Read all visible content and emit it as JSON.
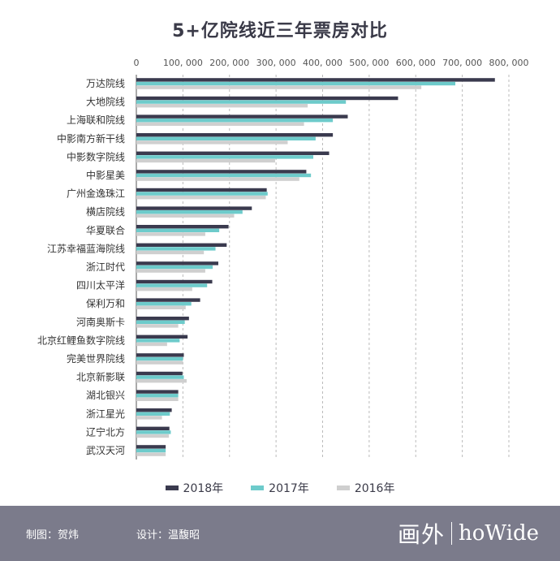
{
  "title": "5+亿院线近三年票房对比",
  "legend": [
    {
      "label": "2018年",
      "color": "#3a3a4e"
    },
    {
      "label": "2017年",
      "color": "#6dcbcb"
    },
    {
      "label": "2016年",
      "color": "#cfcfcf"
    }
  ],
  "footer": {
    "maker": "制图：贺炜",
    "designer": "设计：温馥昭",
    "logo_cn": "画外",
    "logo_en": "hoWide"
  },
  "chart_data": {
    "type": "bar",
    "orientation": "horizontal",
    "title": "5+亿院线近三年票房对比",
    "xlim": [
      0,
      800000
    ],
    "xticks": [
      0,
      100000,
      200000,
      300000,
      400000,
      500000,
      600000,
      700000,
      800000
    ],
    "xtick_labels": [
      "0",
      "100, 000",
      "200, 000",
      "300, 000",
      "400, 000",
      "500, 000",
      "600, 000",
      "700, 000",
      "800, 000"
    ],
    "categories": [
      "万达院线",
      "大地院线",
      "上海联和院线",
      "中影南方新干线",
      "中影数字院线",
      "中影星美",
      "广州金逸珠江",
      "横店院线",
      "华夏联合",
      "江苏幸福蓝海院线",
      "浙江时代",
      "四川太平洋",
      "保利万和",
      "河南奥斯卡",
      "北京红鲤鱼数字院线",
      "完美世界院线",
      "北京新影联",
      "湖北银兴",
      "浙江星光",
      "辽宁北方",
      "武汉天河"
    ],
    "series": [
      {
        "name": "2018年",
        "color": "#3a3a4e",
        "values": [
          770000,
          562000,
          454000,
          422000,
          414000,
          365000,
          280000,
          248000,
          198000,
          194000,
          176000,
          163000,
          137000,
          113000,
          110000,
          102000,
          99000,
          90000,
          76000,
          71000,
          63000
        ]
      },
      {
        "name": "2017年",
        "color": "#6dcbcb",
        "values": [
          685000,
          450000,
          422000,
          385000,
          380000,
          375000,
          282000,
          228000,
          178000,
          170000,
          164000,
          152000,
          118000,
          104000,
          93000,
          100000,
          102000,
          90000,
          72000,
          74000,
          63000
        ]
      },
      {
        "name": "2016年",
        "color": "#cfcfcf",
        "values": [
          612000,
          368000,
          360000,
          325000,
          298000,
          350000,
          278000,
          210000,
          148000,
          145000,
          148000,
          120000,
          106000,
          90000,
          66000,
          100000,
          108000,
          90000,
          55000,
          70000,
          63000
        ]
      }
    ],
    "grid": true,
    "legend_position": "bottom"
  }
}
